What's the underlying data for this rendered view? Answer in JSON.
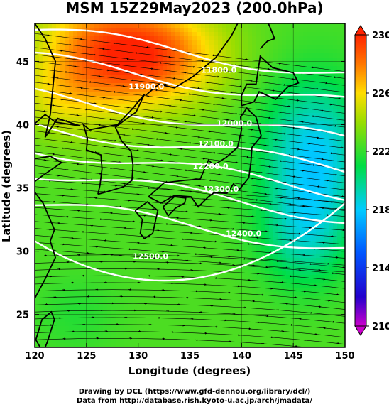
{
  "title": "MSM 15Z29May2023 (200.0hPa)",
  "xlabel": "Longitude (degrees)",
  "ylabel": "Latitude  (degrees)",
  "x_ticks": [
    "120",
    "125",
    "130",
    "135",
    "140",
    "145",
    "150"
  ],
  "y_ticks": [
    "25",
    "30",
    "35",
    "40",
    "45"
  ],
  "colorbar_ticks": [
    "230",
    "226",
    "222",
    "218",
    "214",
    "210"
  ],
  "contour_labels": [
    {
      "text": "11800.0",
      "lon": 137.8,
      "lat": 44.1
    },
    {
      "text": "11900.0",
      "lon": 130.8,
      "lat": 42.8
    },
    {
      "text": "12000.0",
      "lon": 139.3,
      "lat": 39.9
    },
    {
      "text": "12100.0",
      "lon": 137.5,
      "lat": 38.3
    },
    {
      "text": "12200.0",
      "lon": 137.0,
      "lat": 36.5
    },
    {
      "text": "12300.0",
      "lon": 138.0,
      "lat": 34.7
    },
    {
      "text": "12400.0",
      "lon": 140.2,
      "lat": 31.2
    },
    {
      "text": "12500.0",
      "lon": 131.2,
      "lat": 29.4
    }
  ],
  "credits": [
    "Drawing by DCL (https://www.gfd-dennou.org/library/dcl/)",
    "Data from http://database.rish.kyoto-u.ac.jp/arch/jmadata/"
  ],
  "chart_data": {
    "type": "heatmap",
    "title": "MSM 15Z29May2023 (200.0hPa)",
    "xlabel": "Longitude (degrees)",
    "ylabel": "Latitude  (degrees)",
    "xlim": [
      120,
      150
    ],
    "ylim": [
      22.4,
      48
    ],
    "colorbar_range": [
      210,
      230
    ],
    "contour_levels": [
      11800,
      11900,
      12000,
      12100,
      12200,
      12300,
      12400,
      12500
    ],
    "overlays": [
      "wind streamlines with arrows",
      "geopotential height contours (white)",
      "coastlines"
    ]
  }
}
